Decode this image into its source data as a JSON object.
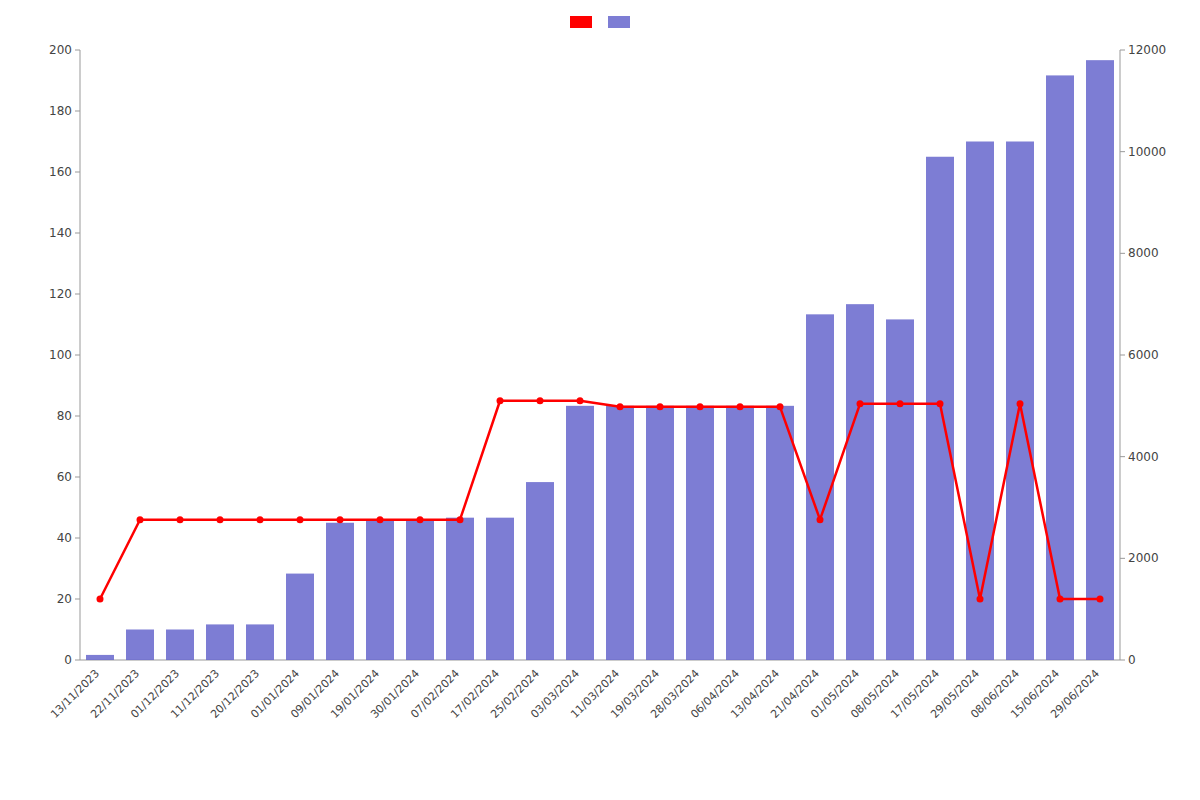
{
  "chart_data": {
    "type": "bar",
    "categories": [
      "13/11/2023",
      "22/11/2023",
      "01/12/2023",
      "11/12/2023",
      "20/12/2023",
      "01/01/2024",
      "09/01/2024",
      "19/01/2024",
      "30/01/2024",
      "07/02/2024",
      "17/02/2024",
      "25/02/2024",
      "03/03/2024",
      "11/03/2024",
      "19/03/2024",
      "28/03/2024",
      "06/04/2024",
      "13/04/2024",
      "21/04/2024",
      "01/05/2024",
      "08/05/2024",
      "17/05/2024",
      "29/05/2024",
      "08/06/2024",
      "15/06/2024",
      "29/06/2024"
    ],
    "series": [
      {
        "type": "line",
        "color": "#ff0000",
        "marker": "circle",
        "axis": "y",
        "values": [
          20,
          46,
          46,
          46,
          46,
          46,
          46,
          46,
          46,
          46,
          85,
          85,
          85,
          83,
          83,
          83,
          83,
          83,
          46,
          84,
          84,
          84,
          20,
          84,
          20,
          20
        ]
      },
      {
        "type": "bar",
        "color": "#6666cc",
        "axis": "y2",
        "values": [
          100,
          600,
          600,
          700,
          700,
          1700,
          2700,
          2750,
          2750,
          2800,
          2800,
          3500,
          5000,
          5000,
          5000,
          5000,
          5000,
          5000,
          6800,
          7000,
          6700,
          9900,
          10200,
          10200,
          11500,
          11800
        ]
      }
    ],
    "ylim": [
      0,
      200
    ],
    "yticks": [
      0,
      20,
      40,
      60,
      80,
      100,
      120,
      140,
      160,
      180,
      200
    ],
    "y2lim": [
      0,
      12000
    ],
    "y2ticks": [
      0,
      2000,
      4000,
      6000,
      8000,
      10000,
      12000
    ],
    "grid": false,
    "legend": "top"
  }
}
